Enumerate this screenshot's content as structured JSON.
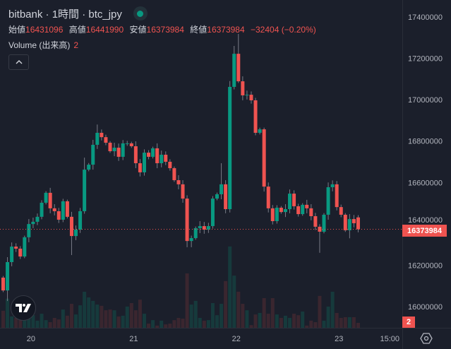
{
  "header": {
    "title": "bitbank · 1時間 · btc_jpy",
    "status_icon": "market-open-dot",
    "ohlc": [
      {
        "label": "始値",
        "value": "16431096"
      },
      {
        "label": "高値",
        "value": "16441990"
      },
      {
        "label": "安値",
        "value": "16373984"
      },
      {
        "label": "終値",
        "value": "16373984"
      }
    ],
    "change": "−32404 (−0.20%)",
    "volume_label": "Volume (出来高)",
    "volume_value": "2"
  },
  "price_badge": "16373984",
  "volume_badge": "2",
  "colors": {
    "up": "#089981",
    "down": "#ef5350",
    "up_vol": "#163a3c",
    "down_vol": "#3a262f",
    "background": "#1b1f2b"
  },
  "chart_data": {
    "type": "candlestick",
    "title": "bitbank · 1時間 · btc_jpy",
    "ylim": [
      15940000,
      17470000
    ],
    "y_ticks": [
      17400000,
      17200000,
      17000000,
      16800000,
      16600000,
      16400000,
      16200000,
      16000000
    ],
    "x_ticks": [
      {
        "label": "20",
        "index": 6.5
      },
      {
        "label": "21",
        "index": 30.5
      },
      {
        "label": "22",
        "index": 54.5
      },
      {
        "label": "23",
        "index": 78.5
      },
      {
        "label": "15:00",
        "index": 93.5
      }
    ],
    "first_open": 16140000,
    "closes": [
      16078000,
      16215000,
      16290000,
      16280000,
      16242000,
      16335000,
      16399000,
      16410000,
      16434000,
      16502000,
      16550000,
      16475000,
      16461000,
      16420000,
      16509000,
      16434000,
      16341000,
      16372000,
      16461000,
      16662000,
      16686000,
      16782000,
      16840000,
      16819000,
      16792000,
      16751000,
      16768000,
      16724000,
      16789000,
      16789000,
      16775000,
      16693000,
      16649000,
      16744000,
      16724000,
      16765000,
      16693000,
      16734000,
      16700000,
      16669000,
      16611000,
      16591000,
      16522000,
      16317000,
      16331000,
      16379000,
      16389000,
      16372000,
      16389000,
      16522000,
      16543000,
      16591000,
      16471000,
      17062000,
      17222000,
      17089000,
      17021000,
      17024000,
      16997000,
      16840000,
      16857000,
      16580000,
      16475000,
      16413000,
      16478000,
      16457000,
      16471000,
      16546000,
      16485000,
      16447000,
      16492000,
      16475000,
      16437000,
      16386000,
      16362000,
      16444000,
      16577000,
      16591000,
      16481000,
      16444000,
      16369000,
      16423000,
      16403000,
      16373984
    ],
    "last_open": 16431096,
    "last_high": 16441990,
    "highs": {
      "19": 16720000,
      "22": 16880000,
      "51": 16693000,
      "53": 17090000,
      "54": 17260000,
      "55": 17318000,
      "61": 16865000,
      "76": 16600000,
      "77": 16610000
    },
    "lows": {
      "1": 16027000,
      "16": 16249000,
      "43": 16287000,
      "44": 16287000,
      "74": 16260000,
      "81": 16330000
    },
    "volume": [
      6.9,
      11.8,
      4.6,
      4,
      5,
      4.5,
      4,
      5.1,
      2.9,
      5.7,
      3.1,
      2.3,
      4,
      3.4,
      7.4,
      4.9,
      9.7,
      5.4,
      9.1,
      14.6,
      12.3,
      10.9,
      9.4,
      8.9,
      7.1,
      7.4,
      7.1,
      4.6,
      4.9,
      8.6,
      10,
      7.1,
      11.4,
      5.7,
      1.7,
      3.1,
      0.9,
      2.9,
      1.4,
      1.7,
      3.1,
      4,
      3.7,
      22,
      9.4,
      10.9,
      4,
      2.9,
      3.1,
      10,
      5.1,
      9.7,
      18.9,
      32.9,
      21.1,
      14.6,
      9.7,
      7.1,
      1.1,
      5.4,
      6,
      12,
      5.7,
      12,
      5.4,
      4,
      4.9,
      4,
      5.7,
      5.1,
      6.6,
      0.9,
      2.9,
      2.3,
      12.9,
      2.9,
      8.6,
      14.6,
      6,
      4,
      4.3,
      4.3,
      4.3,
      2
    ],
    "current_price": 16373984,
    "current_volume": 2,
    "grid": false
  }
}
